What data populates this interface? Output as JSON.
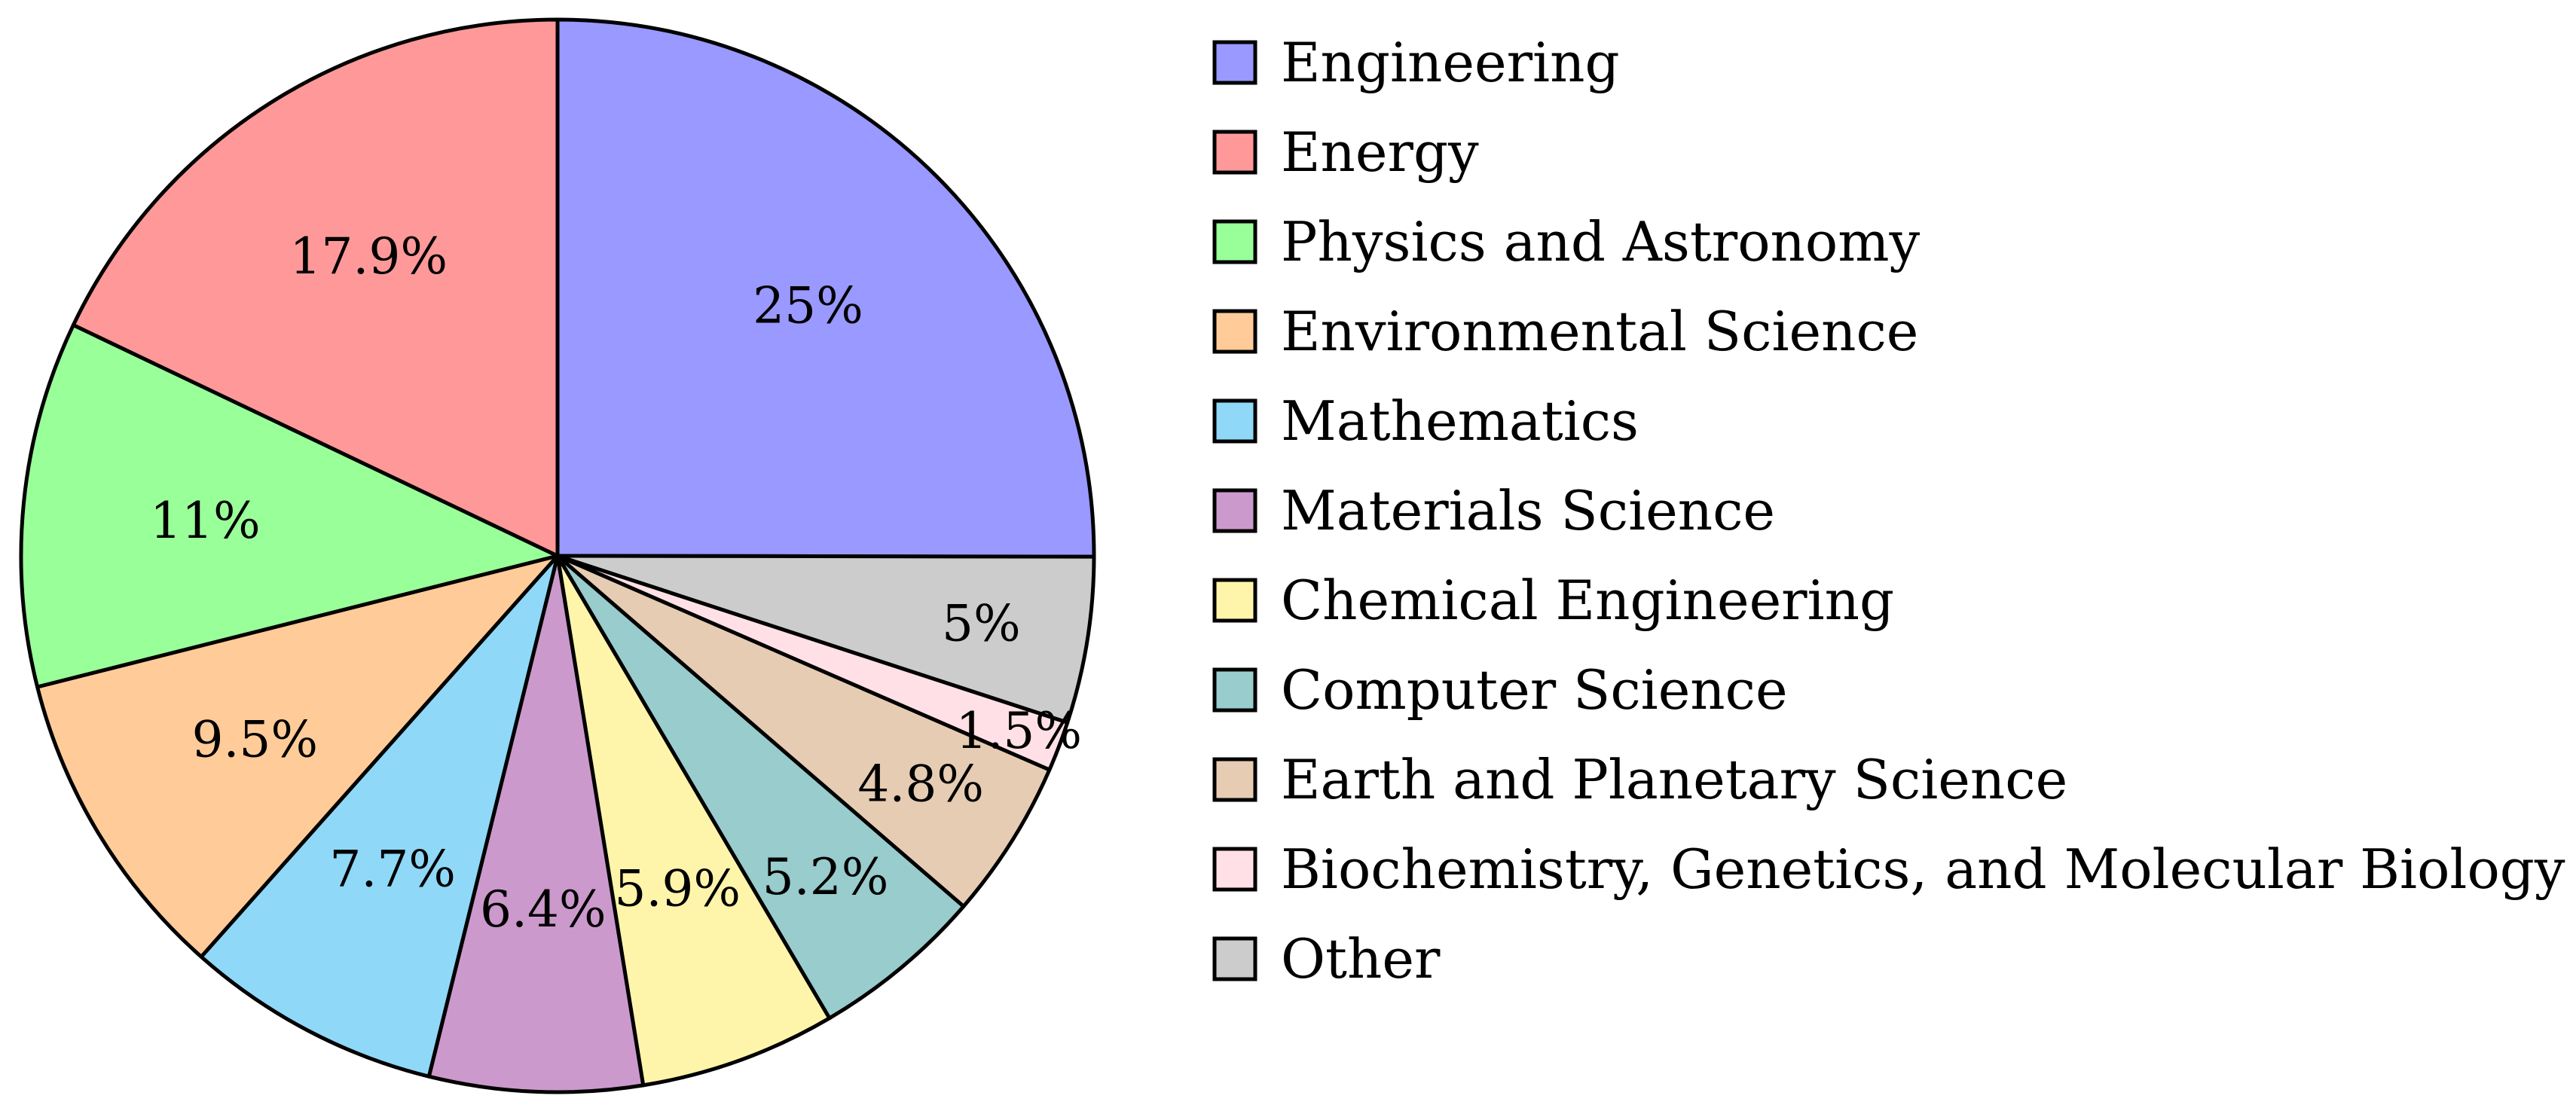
{
  "chart_data": {
    "type": "pie",
    "title": "",
    "grid": false,
    "legend_position": "right",
    "slices": [
      {
        "label": "Engineering",
        "value": 25,
        "value_label": "25%",
        "color": "#9999ff"
      },
      {
        "label": "Other",
        "value": 5,
        "value_label": "5%",
        "color": "#cccccc"
      },
      {
        "label": "Biochemistry, Genetics, and Molecular Biology",
        "value": 1.5,
        "value_label": "1.5%",
        "color": "#ffe0e6"
      },
      {
        "label": "Earth and Planetary Science",
        "value": 4.8,
        "value_label": "4.8%",
        "color": "#e6ccb3"
      },
      {
        "label": "Computer Science",
        "value": 5.2,
        "value_label": "5.2%",
        "color": "#99cccc"
      },
      {
        "label": "Chemical Engineering",
        "value": 5.9,
        "value_label": "5.9%",
        "color": "#fff5aa"
      },
      {
        "label": "Materials Science",
        "value": 6.4,
        "value_label": "6.4%",
        "color": "#cc99cc"
      },
      {
        "label": "Mathematics",
        "value": 7.7,
        "value_label": "7.7%",
        "color": "#8fd8f8"
      },
      {
        "label": "Environmental Science",
        "value": 9.5,
        "value_label": "9.5%",
        "color": "#ffcc99"
      },
      {
        "label": "Physics and Astronomy",
        "value": 11,
        "value_label": "11%",
        "color": "#99ff99"
      },
      {
        "label": "Energy",
        "value": 17.9,
        "value_label": "17.9%",
        "color": "#ff9999"
      }
    ],
    "legend": [
      {
        "label": "Engineering",
        "color": "#9999ff"
      },
      {
        "label": "Energy",
        "color": "#ff9999"
      },
      {
        "label": "Physics and Astronomy",
        "color": "#99ff99"
      },
      {
        "label": "Environmental Science",
        "color": "#ffcc99"
      },
      {
        "label": "Mathematics",
        "color": "#8fd8f8"
      },
      {
        "label": "Materials Science",
        "color": "#cc99cc"
      },
      {
        "label": "Chemical Engineering",
        "color": "#fff5aa"
      },
      {
        "label": "Computer Science",
        "color": "#99cccc"
      },
      {
        "label": "Earth and Planetary Science",
        "color": "#e6ccb3"
      },
      {
        "label": "Biochemistry, Genetics, and Molecular Biology",
        "color": "#ffe0e6"
      },
      {
        "label": "Other",
        "color": "#cccccc"
      }
    ]
  }
}
